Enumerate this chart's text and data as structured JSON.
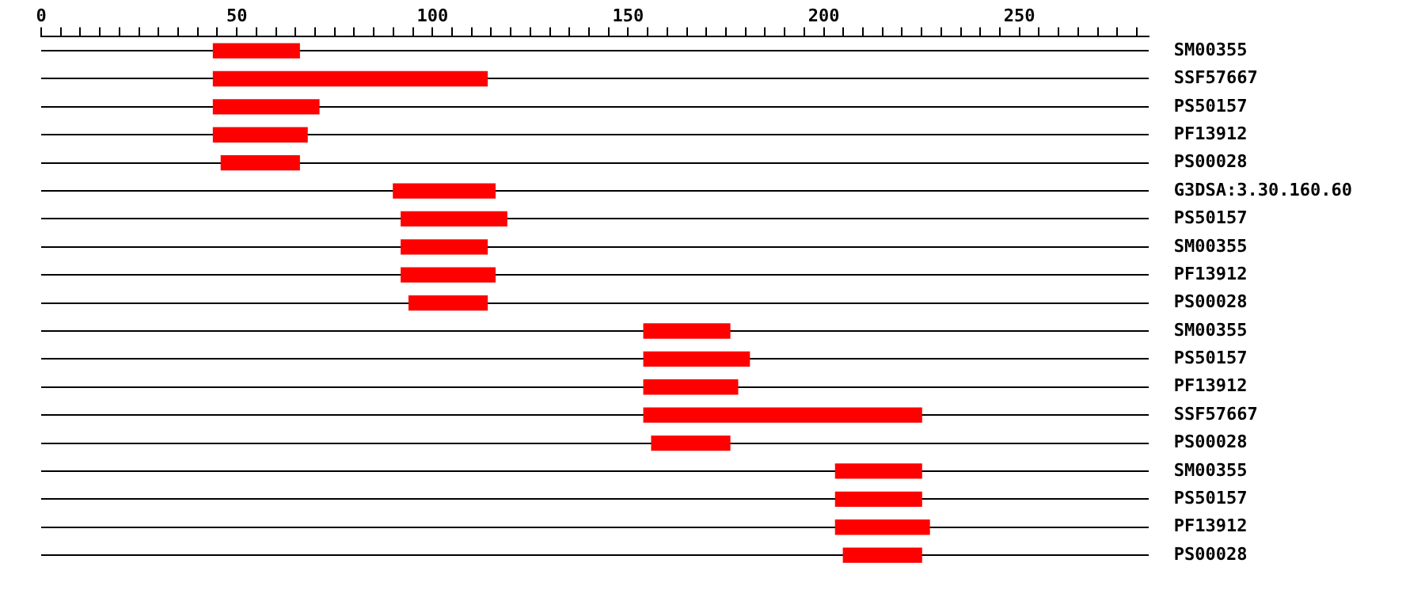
{
  "chart_data": {
    "type": "bar",
    "orientation": "horizontal",
    "categories": [
      "SM00355",
      "SSF57667",
      "PS50157",
      "PF13912",
      "PS00028",
      "G3DSA:3.30.160.60",
      "PS50157",
      "SM00355",
      "PF13912",
      "PS00028",
      "SM00355",
      "PS50157",
      "PF13912",
      "SSF57667",
      "PS00028",
      "SM00355",
      "PS50157",
      "PF13912",
      "PS00028"
    ],
    "base": [
      44,
      44,
      44,
      44,
      46,
      90,
      92,
      92,
      92,
      94,
      154,
      154,
      154,
      154,
      156,
      203,
      203,
      203,
      205
    ],
    "values": [
      22,
      70,
      27,
      24,
      20,
      26,
      27,
      22,
      24,
      20,
      22,
      27,
      24,
      71,
      20,
      22,
      22,
      24,
      20
    ],
    "color": "#ff0000",
    "xlim": [
      0,
      283
    ],
    "xticks": [
      0,
      {
        "value": 5,
        "label": null
      },
      {
        "value": 10,
        "label": null
      },
      {
        "value": 15,
        "label": null
      },
      {
        "value": 20,
        "label": null
      },
      {
        "value": 25,
        "label": null
      },
      {
        "value": 30,
        "label": null
      },
      {
        "value": 35,
        "label": null
      },
      {
        "value": 40,
        "label": null
      },
      {
        "value": 45,
        "label": null
      },
      50,
      {
        "value": 55,
        "label": null
      },
      {
        "value": 60,
        "label": null
      },
      {
        "value": 65,
        "label": null
      },
      {
        "value": 70,
        "label": null
      },
      {
        "value": 75,
        "label": null
      },
      {
        "value": 80,
        "label": null
      },
      {
        "value": 85,
        "label": null
      },
      {
        "value": 90,
        "label": null
      },
      {
        "value": 95,
        "label": null
      },
      100,
      {
        "value": 105,
        "label": null
      },
      {
        "value": 110,
        "label": null
      },
      {
        "value": 115,
        "label": null
      },
      {
        "value": 120,
        "label": null
      },
      {
        "value": 125,
        "label": null
      },
      {
        "value": 130,
        "label": null
      },
      {
        "value": 135,
        "label": null
      },
      {
        "value": 140,
        "label": null
      },
      {
        "value": 145,
        "label": null
      },
      150,
      {
        "value": 155,
        "label": null
      },
      {
        "value": 160,
        "label": null
      },
      {
        "value": 165,
        "label": null
      },
      {
        "value": 170,
        "label": null
      },
      {
        "value": 175,
        "label": null
      },
      {
        "value": 180,
        "label": null
      },
      {
        "value": 185,
        "label": null
      },
      {
        "value": 190,
        "label": null
      },
      {
        "value": 195,
        "label": null
      },
      200,
      {
        "value": 205,
        "label": null
      },
      {
        "value": 210,
        "label": null
      },
      {
        "value": 215,
        "label": null
      },
      {
        "value": 220,
        "label": null
      },
      {
        "value": 225,
        "label": null
      },
      {
        "value": 230,
        "label": null
      },
      {
        "value": 235,
        "label": null
      },
      {
        "value": 240,
        "label": null
      },
      {
        "value": 245,
        "label": null
      },
      250,
      {
        "value": 255,
        "label": null
      },
      {
        "value": 260,
        "label": null
      },
      {
        "value": 265,
        "label": null
      },
      {
        "value": 270,
        "label": null
      },
      {
        "value": 275,
        "label": null
      },
      {
        "value": 280,
        "label": null
      }
    ],
    "grid": "y"
  }
}
